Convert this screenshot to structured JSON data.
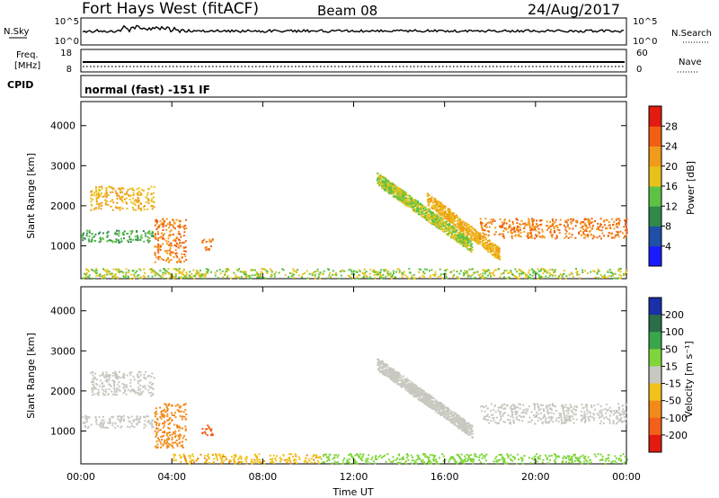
{
  "header": {
    "station": "Fort Hays West (fitACF)",
    "beam": "Beam 08",
    "date": "24/Aug/2017"
  },
  "status_panels": {
    "nsky_label": "N.Sky",
    "nsky_ticks": [
      "10^5",
      "10^0"
    ],
    "nsearch_label": "N.Search",
    "nsearch_ticks": [
      "10^5",
      "10^0"
    ],
    "freq_label_line1": "Freq.",
    "freq_label_line2": "[MHz]",
    "freq_ticks": [
      "18",
      "8"
    ],
    "nave_label": "Nave",
    "nave_ticks": [
      "60",
      "0"
    ],
    "cpid_label": "CPID",
    "cpid_text": "normal (fast) -151 IF"
  },
  "chart_data": [
    {
      "type": "heatmap",
      "panel": "power",
      "ylabel": "Slant Range [km]",
      "yticks": [
        1000,
        2000,
        3000,
        4000
      ],
      "ylim": [
        180,
        4600
      ],
      "xlim_hours": [
        0,
        24
      ],
      "colorbar_label": "Power [dB]",
      "colorbar_ticks": [
        "4",
        "8",
        "12",
        "16",
        "20",
        "24",
        "28"
      ],
      "colorbar_colors": [
        "#1a1aff",
        "#1f4fa8",
        "#2f8a4c",
        "#5cc243",
        "#e8c21a",
        "#f29a1a",
        "#f06010",
        "#e21a10"
      ],
      "features": [
        {
          "name": "morning-echo-upper",
          "t_range": [
            0.4,
            3.2
          ],
          "r_range": [
            1900,
            2500
          ],
          "level": 20
        },
        {
          "name": "morning-echo-lower",
          "t_range": [
            0.0,
            3.2
          ],
          "r_range": [
            1100,
            1400
          ],
          "level": 12
        },
        {
          "name": "blob-0400",
          "t_range": [
            3.2,
            4.6
          ],
          "r_range": [
            600,
            1700
          ],
          "level": 24
        },
        {
          "name": "blob-0540",
          "t_range": [
            5.3,
            5.8
          ],
          "r_range": [
            900,
            1200
          ],
          "level": 24
        },
        {
          "name": "ground-scatter-near",
          "t_range": [
            0.0,
            24.0
          ],
          "r_range": [
            200,
            450
          ],
          "level": 16
        },
        {
          "name": "streak-1",
          "t_range": [
            13.0,
            17.2
          ],
          "r_range": [
            1000,
            2700
          ],
          "level": 16
        },
        {
          "name": "streak-2",
          "t_range": [
            15.2,
            18.4
          ],
          "r_range": [
            800,
            2200
          ],
          "level": 20
        },
        {
          "name": "evening-band",
          "t_range": [
            17.5,
            24.0
          ],
          "r_range": [
            1200,
            1700
          ],
          "level": 24
        }
      ]
    },
    {
      "type": "heatmap",
      "panel": "velocity",
      "ylabel": "Slant Range [km]",
      "yticks": [
        1000,
        2000,
        3000,
        4000
      ],
      "ylim": [
        180,
        4600
      ],
      "xlabel": "Time UT",
      "xticks": [
        "00:00",
        "04:00",
        "08:00",
        "12:00",
        "16:00",
        "20:00",
        "00:00"
      ],
      "xlim_hours": [
        0,
        24
      ],
      "colorbar_label": "Velocity [m s⁻¹]",
      "colorbar_ticks": [
        "200",
        "100",
        "50",
        "15",
        "-15",
        "-50",
        "-100",
        "-200"
      ],
      "colorbar_colors": [
        "#1a2fa8",
        "#2a6e4a",
        "#3aa64a",
        "#7fd63a",
        "#c8c8c0",
        "#f2c21a",
        "#f28a1a",
        "#f2601a",
        "#e21a10"
      ],
      "features": [
        {
          "name": "morning-echo-upper",
          "t_range": [
            0.4,
            3.2
          ],
          "r_range": [
            1900,
            2500
          ],
          "velocity": 0
        },
        {
          "name": "morning-echo-lower",
          "t_range": [
            0.0,
            3.2
          ],
          "r_range": [
            1100,
            1400
          ],
          "velocity": 0
        },
        {
          "name": "blob-0400",
          "t_range": [
            3.2,
            4.6
          ],
          "r_range": [
            600,
            1700
          ],
          "velocity": -80
        },
        {
          "name": "blob-0540",
          "t_range": [
            5.3,
            5.8
          ],
          "r_range": [
            900,
            1200
          ],
          "velocity": -120
        },
        {
          "name": "near-range-morning",
          "t_range": [
            4.0,
            10.5
          ],
          "r_range": [
            200,
            450
          ],
          "velocity": -40
        },
        {
          "name": "near-range-afternoon",
          "t_range": [
            10.5,
            24.0
          ],
          "r_range": [
            200,
            450
          ],
          "velocity": 30
        },
        {
          "name": "streak-1",
          "t_range": [
            13.0,
            17.2
          ],
          "r_range": [
            1000,
            2700
          ],
          "velocity": 0
        },
        {
          "name": "evening-band",
          "t_range": [
            17.5,
            24.0
          ],
          "r_range": [
            1200,
            1700
          ],
          "velocity": 0
        }
      ]
    }
  ]
}
